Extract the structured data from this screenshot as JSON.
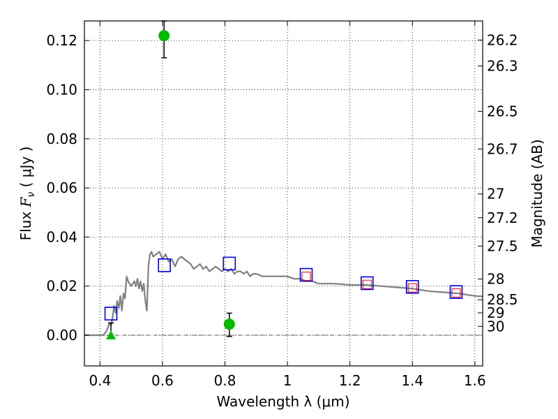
{
  "chart_data": {
    "type": "scatter",
    "xlabel": "Wavelength  λ (μm)",
    "ylabel_prefix": "Flux  ",
    "ylabel_var": "F",
    "ylabel_sub": "ν",
    "ylabel_suffix": "  ( μJy )",
    "y2label": "Magnitude (AB)",
    "xlim": [
      0.35,
      1.625
    ],
    "ylim": [
      -0.0125,
      0.128
    ],
    "grid": true,
    "x_ticks": [
      {
        "value": 0.4,
        "label": "0.4"
      },
      {
        "value": 0.6,
        "label": "0.6"
      },
      {
        "value": 0.8,
        "label": "0.8"
      },
      {
        "value": 1.0,
        "label": "1"
      },
      {
        "value": 1.2,
        "label": "1.2"
      },
      {
        "value": 1.4,
        "label": "1.4"
      },
      {
        "value": 1.6,
        "label": "1.6"
      }
    ],
    "y_ticks": [
      {
        "value": 0.0,
        "label": "0.00"
      },
      {
        "value": 0.02,
        "label": "0.02"
      },
      {
        "value": 0.04,
        "label": "0.04"
      },
      {
        "value": 0.06,
        "label": "0.06"
      },
      {
        "value": 0.08,
        "label": "0.08"
      },
      {
        "value": 0.1,
        "label": "0.10"
      },
      {
        "value": 0.12,
        "label": "0.12"
      }
    ],
    "y2_ticks": [
      {
        "mag": 26.2,
        "label": "26.2"
      },
      {
        "mag": 26.3,
        "label": "26.3"
      },
      {
        "mag": 26.5,
        "label": "26.5"
      },
      {
        "mag": 26.7,
        "label": "26.7"
      },
      {
        "mag": 27.0,
        "label": "27"
      },
      {
        "mag": 27.2,
        "label": "27.2"
      },
      {
        "mag": 27.5,
        "label": "27.5"
      },
      {
        "mag": 28.0,
        "label": "28"
      },
      {
        "mag": 28.5,
        "label": "28.5"
      },
      {
        "mag": 29.0,
        "label": "29"
      },
      {
        "mag": 30.0,
        "label": "30"
      }
    ],
    "colors": {
      "model": "#808080",
      "detections": "#00bb00",
      "model_photometry": "#0000dd",
      "observed_boxes": "#dd0000",
      "errorbars": "#000000",
      "zero_line": "#555555"
    },
    "model_spectrum": {
      "x": [
        0.35,
        0.41,
        0.42,
        0.425,
        0.43,
        0.435,
        0.44,
        0.445,
        0.45,
        0.455,
        0.46,
        0.465,
        0.47,
        0.475,
        0.48,
        0.485,
        0.49,
        0.495,
        0.5,
        0.505,
        0.51,
        0.515,
        0.52,
        0.525,
        0.53,
        0.535,
        0.54,
        0.545,
        0.55,
        0.555,
        0.56,
        0.565,
        0.57,
        0.58,
        0.59,
        0.6,
        0.61,
        0.62,
        0.63,
        0.64,
        0.65,
        0.66,
        0.67,
        0.68,
        0.69,
        0.7,
        0.71,
        0.72,
        0.73,
        0.74,
        0.75,
        0.76,
        0.77,
        0.78,
        0.79,
        0.8,
        0.81,
        0.82,
        0.83,
        0.84,
        0.85,
        0.86,
        0.87,
        0.88,
        0.89,
        0.9,
        0.92,
        0.94,
        0.96,
        0.98,
        1.0,
        1.02,
        1.04,
        1.06,
        1.08,
        1.1,
        1.15,
        1.2,
        1.25,
        1.3,
        1.35,
        1.4,
        1.45,
        1.5,
        1.55,
        1.6,
        1.625
      ],
      "y": [
        0.0,
        0.0,
        0.0015,
        0.003,
        0.005,
        0.004,
        0.007,
        0.012,
        0.009,
        0.014,
        0.011,
        0.016,
        0.01,
        0.017,
        0.015,
        0.024,
        0.022,
        0.021,
        0.02,
        0.021,
        0.022,
        0.02,
        0.023,
        0.019,
        0.022,
        0.018,
        0.021,
        0.014,
        0.01,
        0.028,
        0.033,
        0.034,
        0.032,
        0.033,
        0.034,
        0.031,
        0.033,
        0.03,
        0.031,
        0.028,
        0.031,
        0.032,
        0.031,
        0.03,
        0.029,
        0.027,
        0.028,
        0.029,
        0.027,
        0.028,
        0.026,
        0.027,
        0.028,
        0.027,
        0.026,
        0.027,
        0.026,
        0.027,
        0.025,
        0.026,
        0.026,
        0.025,
        0.026,
        0.024,
        0.025,
        0.025,
        0.024,
        0.024,
        0.024,
        0.024,
        0.024,
        0.023,
        0.023,
        0.022,
        0.022,
        0.021,
        0.021,
        0.0205,
        0.0205,
        0.02,
        0.0195,
        0.019,
        0.018,
        0.0175,
        0.017,
        0.016,
        0.0158
      ]
    },
    "detections": [
      {
        "x": 0.605,
        "y": 0.122,
        "yerr_low": 0.009,
        "yerr_high": 0.006
      },
      {
        "x": 0.814,
        "y": 0.0045,
        "yerr_low": 0.005,
        "yerr_high": 0.0045
      }
    ],
    "upper_limits": [
      {
        "x": 0.435,
        "y": 0.0,
        "yerr_high": 0.005
      }
    ],
    "model_photometry": [
      {
        "x": 0.435,
        "y": 0.0088
      },
      {
        "x": 0.606,
        "y": 0.0285
      },
      {
        "x": 0.814,
        "y": 0.0292
      },
      {
        "x": 1.06,
        "y": 0.0246
      },
      {
        "x": 1.255,
        "y": 0.0212
      },
      {
        "x": 1.4,
        "y": 0.0197
      },
      {
        "x": 1.54,
        "y": 0.0176
      }
    ],
    "observed_boxes": [
      {
        "x": 1.06,
        "y": 0.024
      },
      {
        "x": 1.255,
        "y": 0.0207
      },
      {
        "x": 1.4,
        "y": 0.0193
      },
      {
        "x": 1.54,
        "y": 0.0172
      }
    ]
  }
}
